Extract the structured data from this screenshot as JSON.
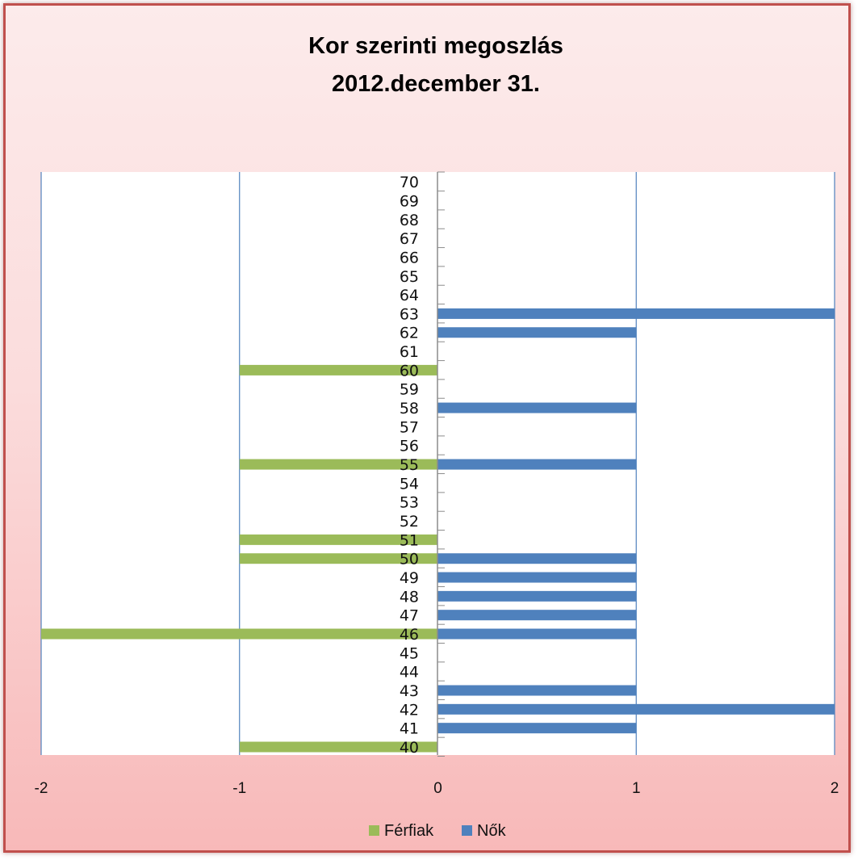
{
  "chart_data": {
    "type": "bar",
    "orientation": "horizontal",
    "title": "Kor szerinti megoszlás",
    "subtitle": "2012.december 31.",
    "categories": [
      "40",
      "41",
      "42",
      "43",
      "44",
      "45",
      "46",
      "47",
      "48",
      "49",
      "50",
      "51",
      "52",
      "53",
      "54",
      "55",
      "56",
      "57",
      "58",
      "59",
      "60",
      "61",
      "62",
      "63",
      "64",
      "65",
      "66",
      "67",
      "68",
      "69",
      "70"
    ],
    "series": [
      {
        "name": "Férfiak",
        "color": "#9bbb59",
        "values": [
          -1,
          0,
          0,
          0,
          0,
          0,
          -2,
          0,
          0,
          0,
          -1,
          -1,
          0,
          0,
          0,
          -1,
          0,
          0,
          0,
          0,
          -1,
          0,
          0,
          0,
          0,
          0,
          0,
          0,
          0,
          0,
          0
        ]
      },
      {
        "name": "Nők",
        "color": "#4f81bd",
        "values": [
          0,
          1,
          2,
          1,
          0,
          0,
          1,
          1,
          1,
          1,
          1,
          0,
          0,
          0,
          0,
          1,
          0,
          0,
          1,
          0,
          0,
          0,
          1,
          2,
          0,
          0,
          0,
          0,
          0,
          0,
          0
        ]
      }
    ],
    "xlim": [
      -2,
      2
    ],
    "x_ticks": [
      "-2",
      "-1",
      "0",
      "1",
      "2"
    ],
    "grid": "vertical",
    "legend": "bottom"
  }
}
